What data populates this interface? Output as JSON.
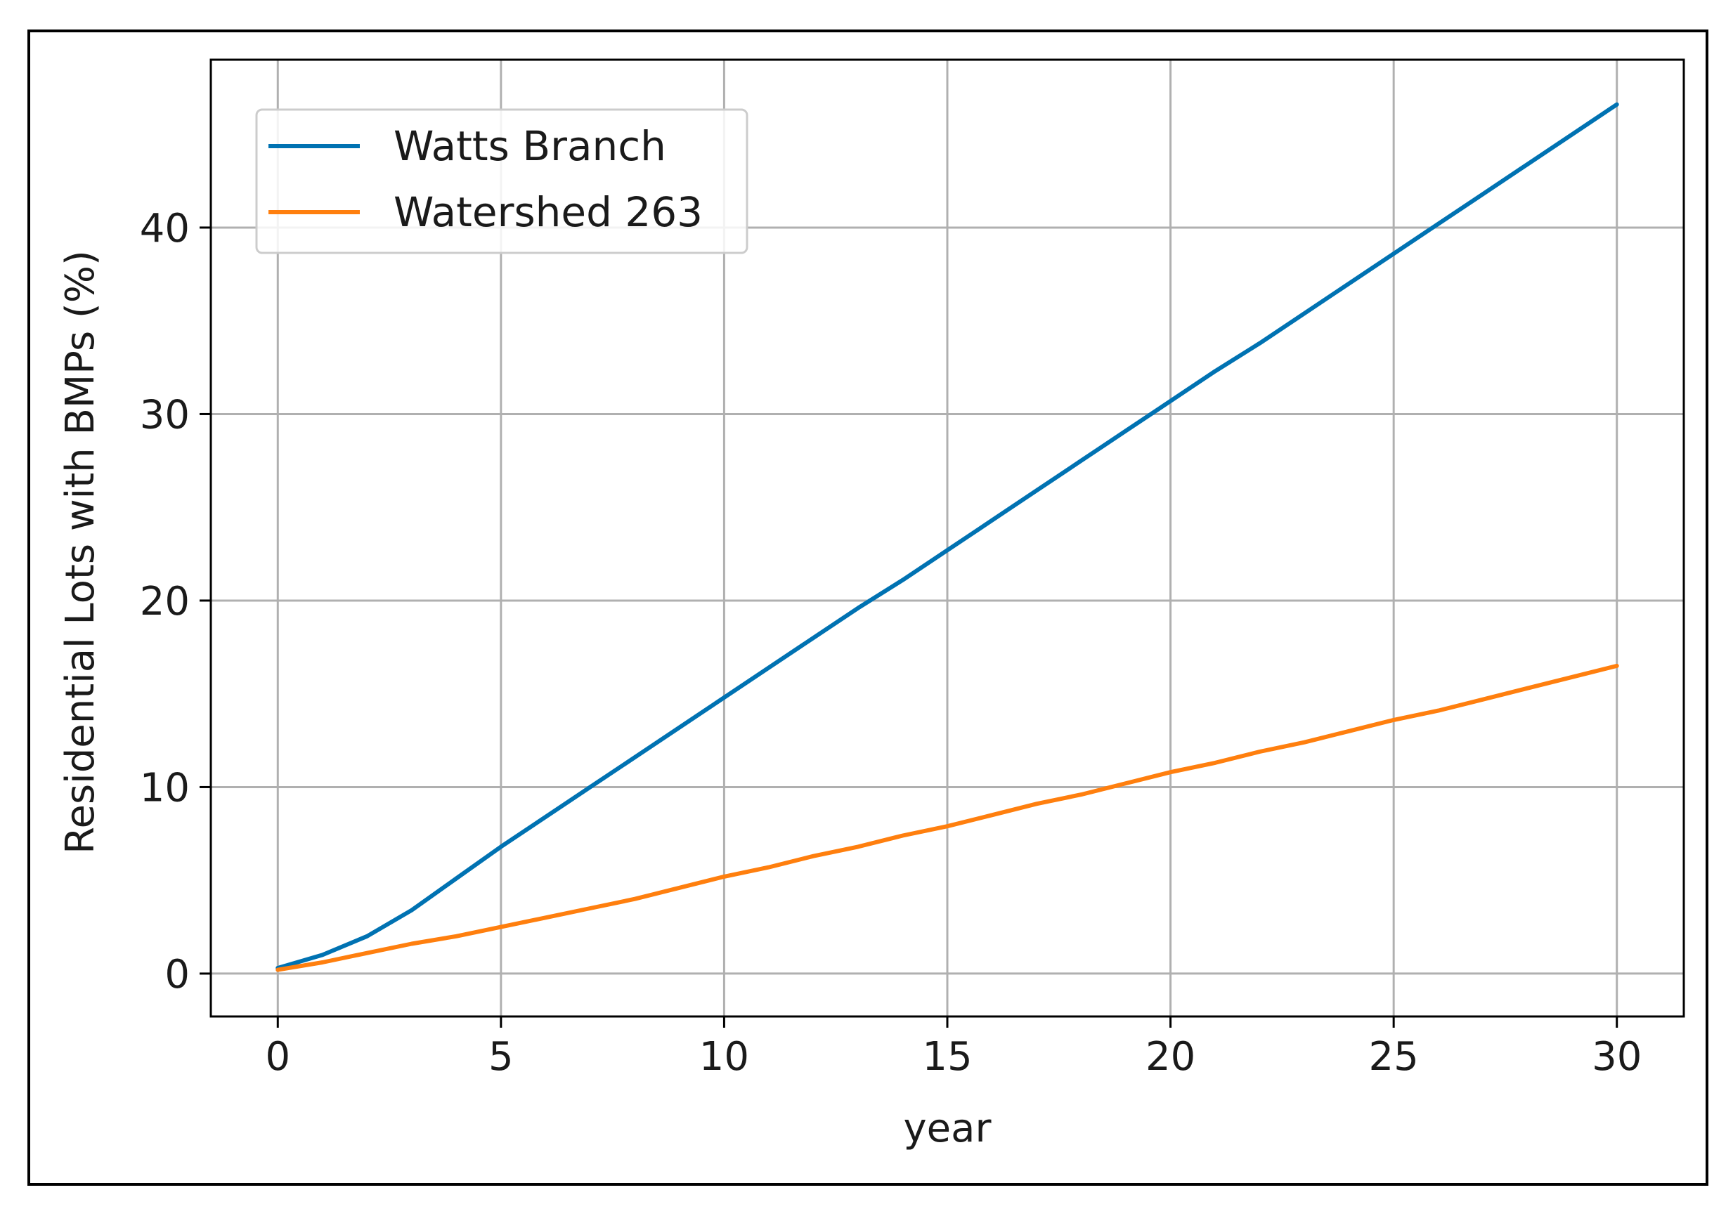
{
  "chart_data": {
    "type": "line",
    "title": "",
    "xlabel": "year",
    "ylabel": "Residential Lots with BMPs (%)",
    "xlim": [
      -1.5,
      31.5
    ],
    "ylim": [
      -2.3,
      49
    ],
    "xticks": [
      0,
      5,
      10,
      15,
      20,
      25,
      30
    ],
    "yticks": [
      0,
      10,
      20,
      30,
      40
    ],
    "grid": true,
    "legend_position": "top-left",
    "series": [
      {
        "name": "Watts Branch",
        "color": "#0072b2",
        "x": [
          0,
          1,
          2,
          3,
          4,
          5,
          6,
          7,
          8,
          9,
          10,
          11,
          12,
          13,
          14,
          15,
          16,
          17,
          18,
          19,
          20,
          21,
          22,
          23,
          24,
          25,
          26,
          27,
          28,
          29,
          30
        ],
        "y": [
          0.3,
          1.0,
          2.0,
          3.4,
          5.1,
          6.8,
          8.4,
          10.0,
          11.6,
          13.2,
          14.8,
          16.4,
          18.0,
          19.6,
          21.1,
          22.7,
          24.3,
          25.9,
          27.5,
          29.1,
          30.7,
          32.3,
          33.8,
          35.4,
          37.0,
          38.6,
          40.2,
          41.8,
          43.4,
          45.0,
          46.6
        ]
      },
      {
        "name": "Watershed 263",
        "color": "#ff7f0e",
        "x": [
          0,
          1,
          2,
          3,
          4,
          5,
          6,
          7,
          8,
          9,
          10,
          11,
          12,
          13,
          14,
          15,
          16,
          17,
          18,
          19,
          20,
          21,
          22,
          23,
          24,
          25,
          26,
          27,
          28,
          29,
          30
        ],
        "y": [
          0.2,
          0.6,
          1.1,
          1.6,
          2.0,
          2.5,
          3.0,
          3.5,
          4.0,
          4.6,
          5.2,
          5.7,
          6.3,
          6.8,
          7.4,
          7.9,
          8.5,
          9.1,
          9.6,
          10.2,
          10.8,
          11.3,
          11.9,
          12.4,
          13.0,
          13.6,
          14.1,
          14.7,
          15.3,
          15.9,
          16.5
        ]
      }
    ]
  }
}
